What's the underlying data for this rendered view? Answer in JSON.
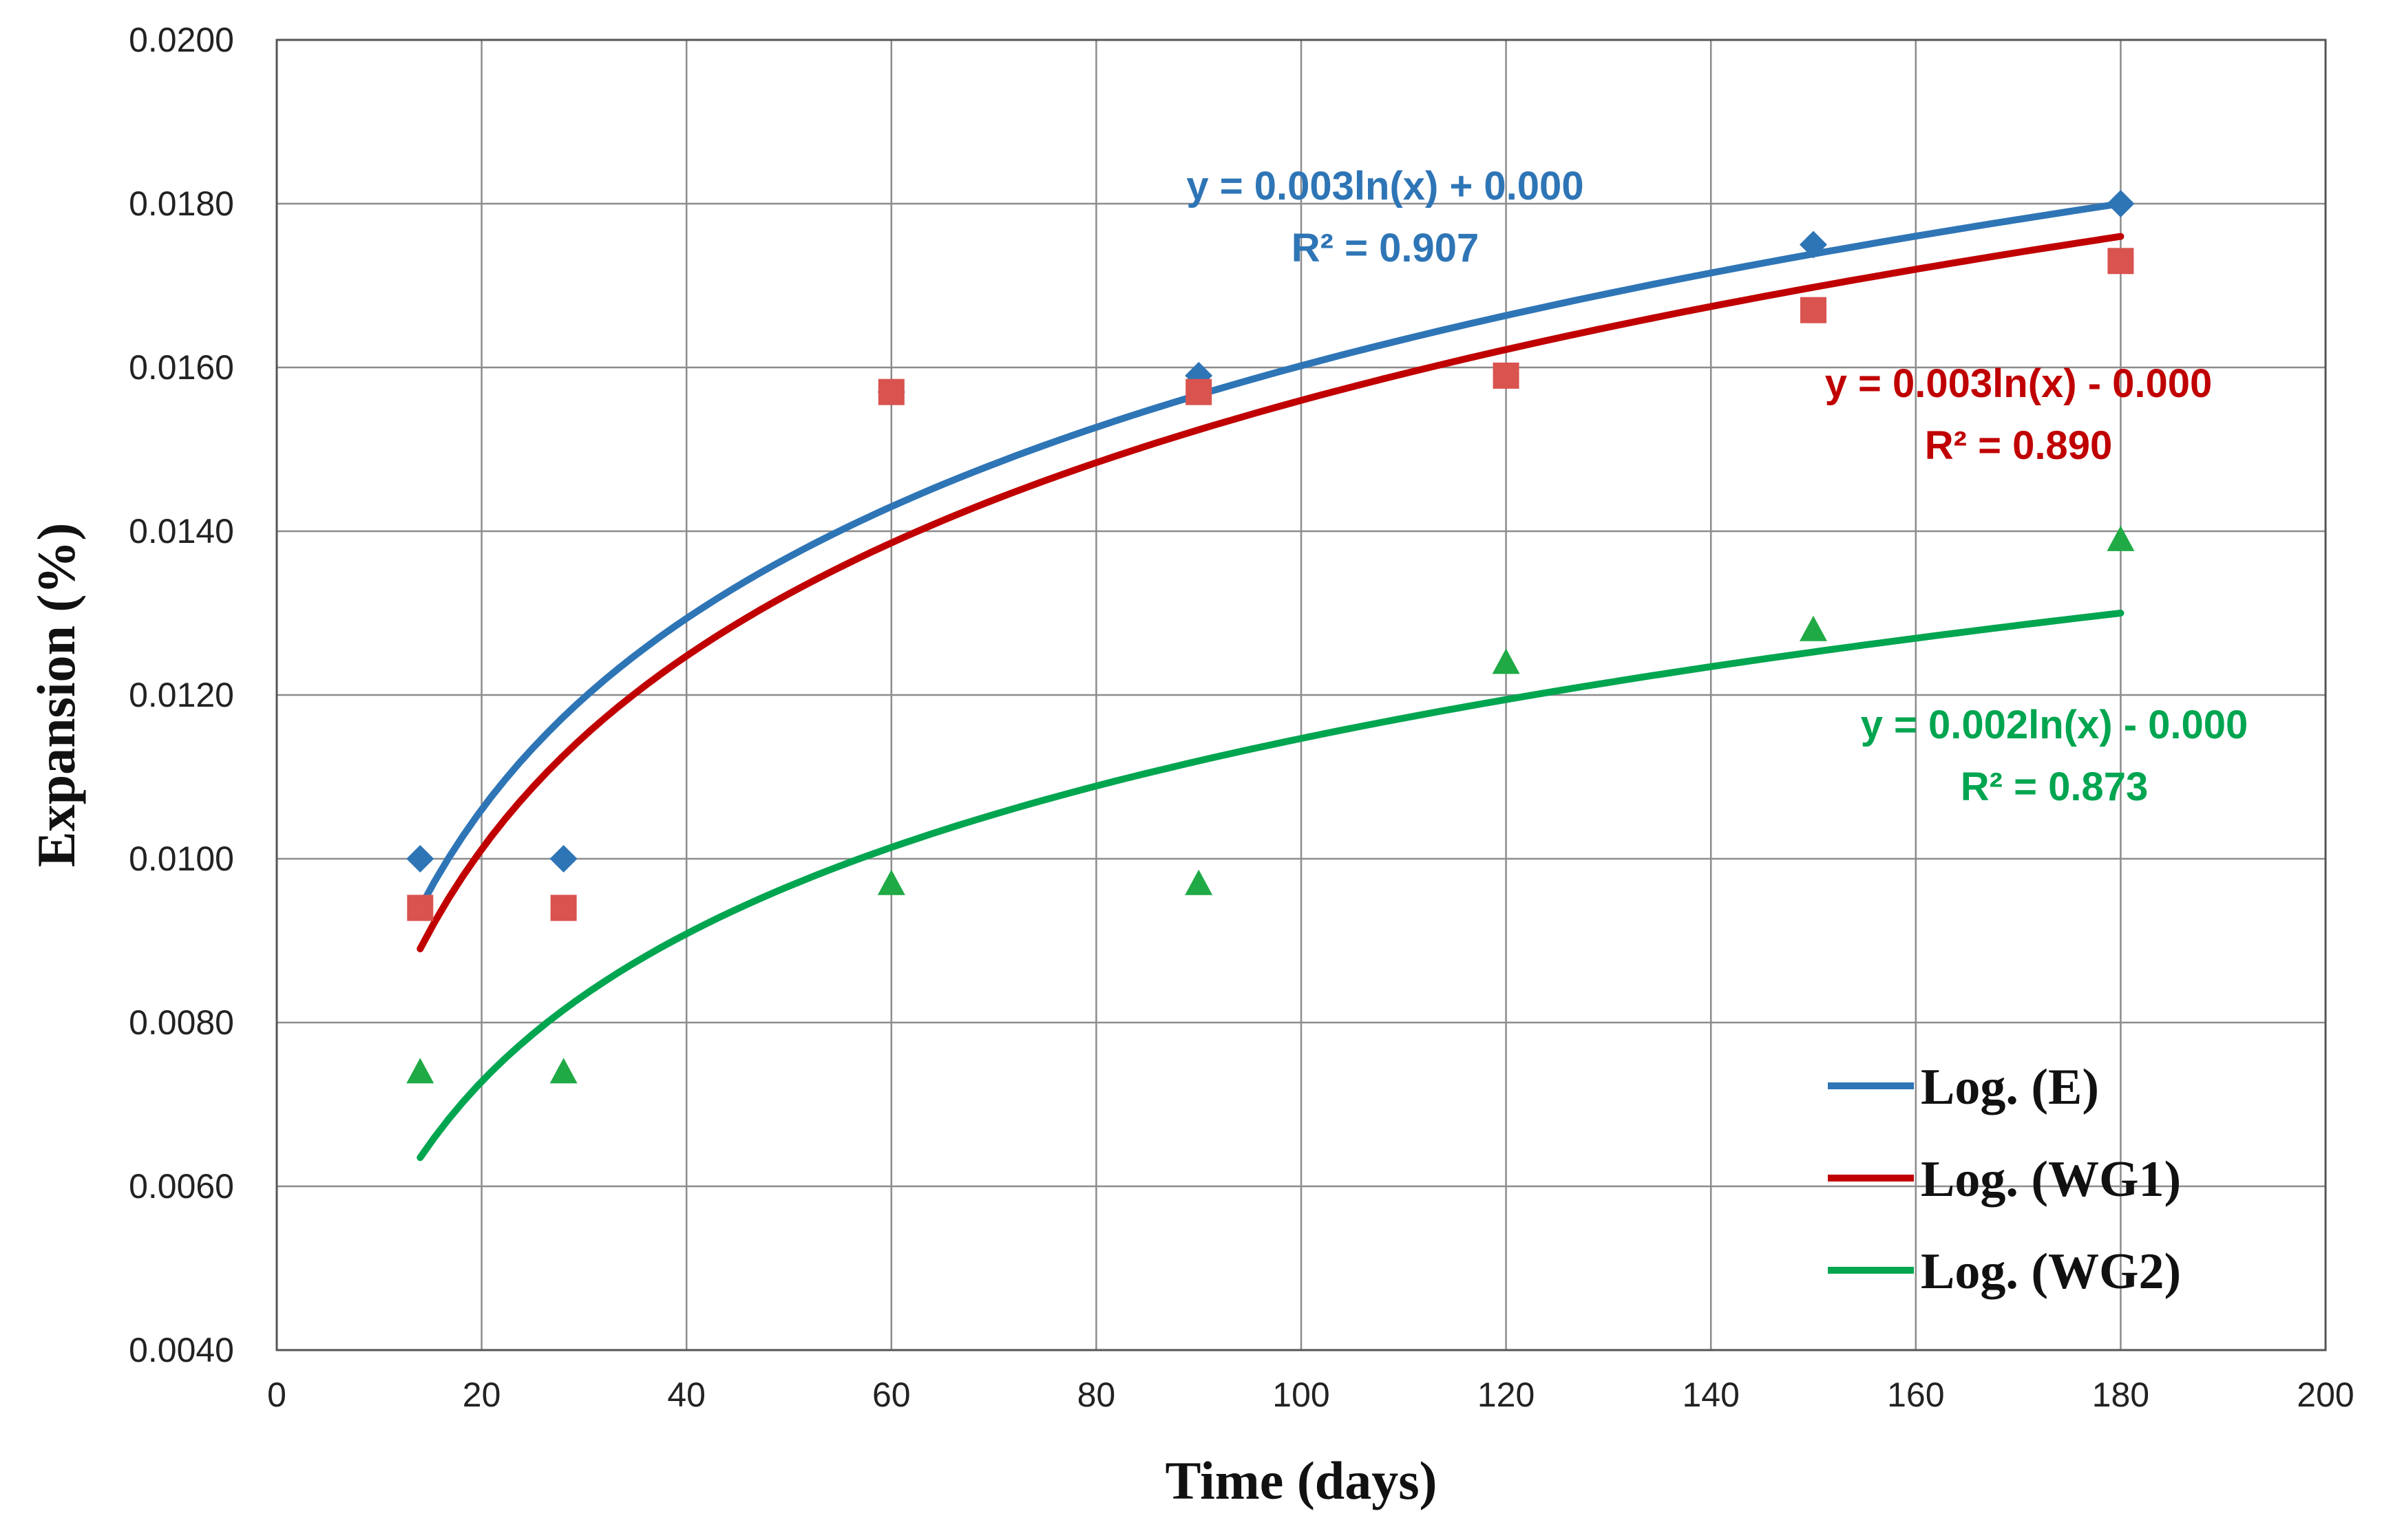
{
  "chart_data": {
    "type": "scatter",
    "title": "",
    "xlabel": "Time (days)",
    "ylabel": "Expansion (%)",
    "xlim": [
      0,
      200
    ],
    "ylim": [
      0.004,
      0.02
    ],
    "xticks": [
      "0",
      "20",
      "40",
      "60",
      "80",
      "100",
      "120",
      "140",
      "160",
      "180",
      "200"
    ],
    "yticks": [
      "0.0040",
      "0.0060",
      "0.0080",
      "0.0100",
      "0.0120",
      "0.0140",
      "0.0160",
      "0.0180",
      "0.0200"
    ],
    "grid": true,
    "legend_position": "bottom-right",
    "series": [
      {
        "name": "E",
        "marker": "diamond",
        "color": "#2E75B6",
        "x": [
          14,
          28,
          60,
          90,
          150,
          180
        ],
        "y": [
          0.01,
          0.01,
          0.0157,
          0.0159,
          0.0175,
          0.018
        ],
        "trend": {
          "label": "Log. (E)",
          "start": [
            14,
            0.0094
          ],
          "end": [
            180,
            0.018
          ],
          "equation": "y = 0.003ln(x) + 0.000",
          "r2": "R² = 0.907"
        }
      },
      {
        "name": "WG1",
        "marker": "square",
        "color": "#C00000",
        "marker_color": "#D9534F",
        "x": [
          14,
          28,
          60,
          90,
          120,
          150,
          180
        ],
        "y": [
          0.0094,
          0.0094,
          0.0157,
          0.0157,
          0.0159,
          0.0167,
          0.0173
        ],
        "trend": {
          "label": "Log. (WG1)",
          "start": [
            14,
            0.0089
          ],
          "end": [
            180,
            0.0176
          ],
          "equation": "y = 0.003ln(x) - 0.000",
          "r2": "R² = 0.890"
        }
      },
      {
        "name": "WG2",
        "marker": "triangle",
        "color": "#00A550",
        "marker_color": "#1FAA45",
        "x": [
          14,
          28,
          60,
          90,
          120,
          150,
          180
        ],
        "y": [
          0.0074,
          0.0074,
          0.0097,
          0.0097,
          0.0124,
          0.0128,
          0.0139
        ],
        "trend": {
          "label": "Log. (WG2)",
          "start": [
            14,
            0.00635
          ],
          "end": [
            180,
            0.013
          ],
          "equation": "y = 0.002ln(x) - 0.000",
          "r2": "R² = 0.873"
        }
      }
    ]
  }
}
